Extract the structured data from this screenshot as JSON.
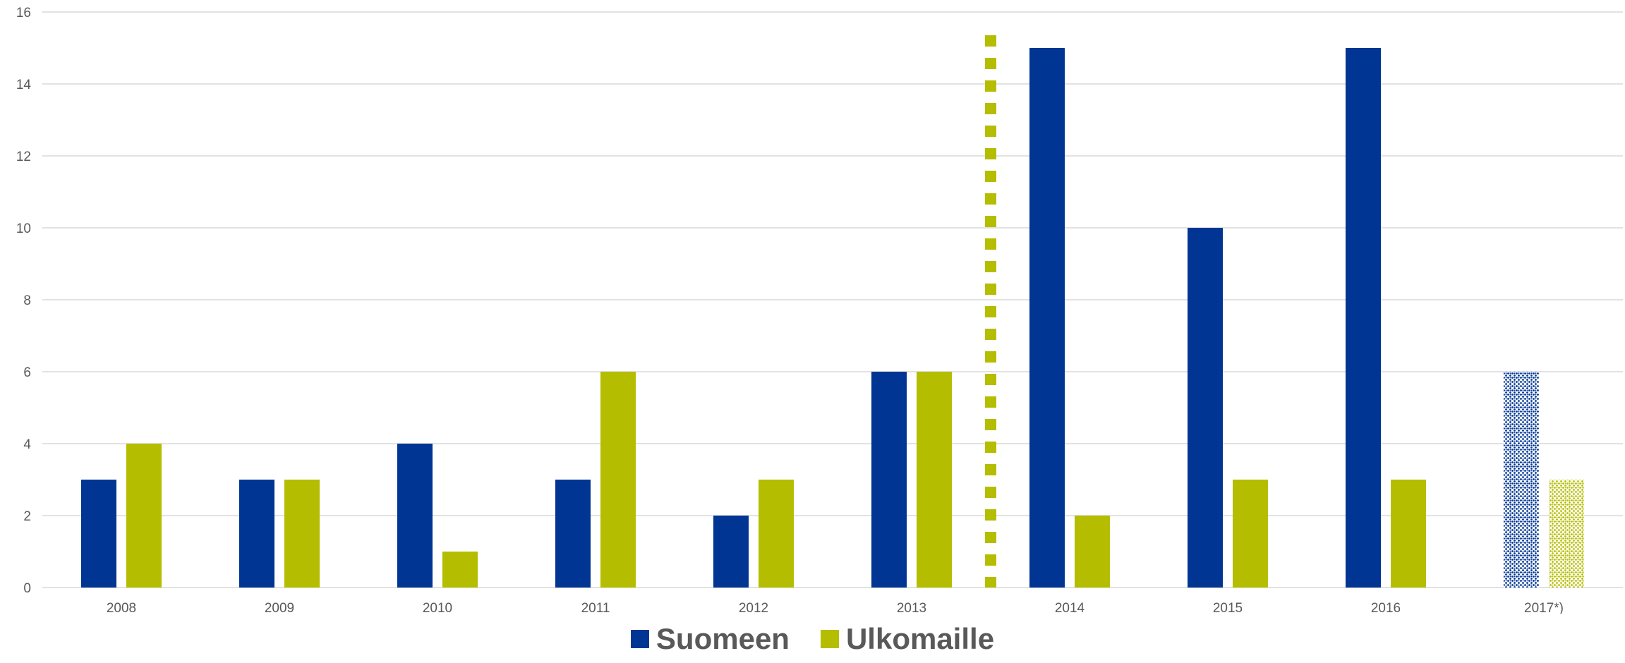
{
  "chart_data": {
    "type": "bar",
    "title": "",
    "categories": [
      "2008",
      "2009",
      "2010",
      "2011",
      "2012",
      "2013",
      "2014",
      "2015",
      "2016",
      "2017*)"
    ],
    "series": [
      {
        "name": "Suomeen",
        "color": "#003594",
        "values": [
          3,
          3,
          4,
          3,
          2,
          6,
          15,
          10,
          15,
          6
        ]
      },
      {
        "name": "Ulkomaille",
        "color": "#b5bd00",
        "values": [
          4,
          3,
          1,
          6,
          3,
          6,
          2,
          3,
          3,
          3
        ]
      }
    ],
    "y_ticks": [
      "0",
      "2",
      "4",
      "6",
      "8",
      "10",
      "12",
      "14",
      "16"
    ],
    "ylim": [
      0,
      16
    ],
    "grid": true,
    "legend_position": "bottom",
    "patterned_category": "2017*)",
    "dotted_divider_after": "2013",
    "divider_color": "#b5bd00"
  }
}
